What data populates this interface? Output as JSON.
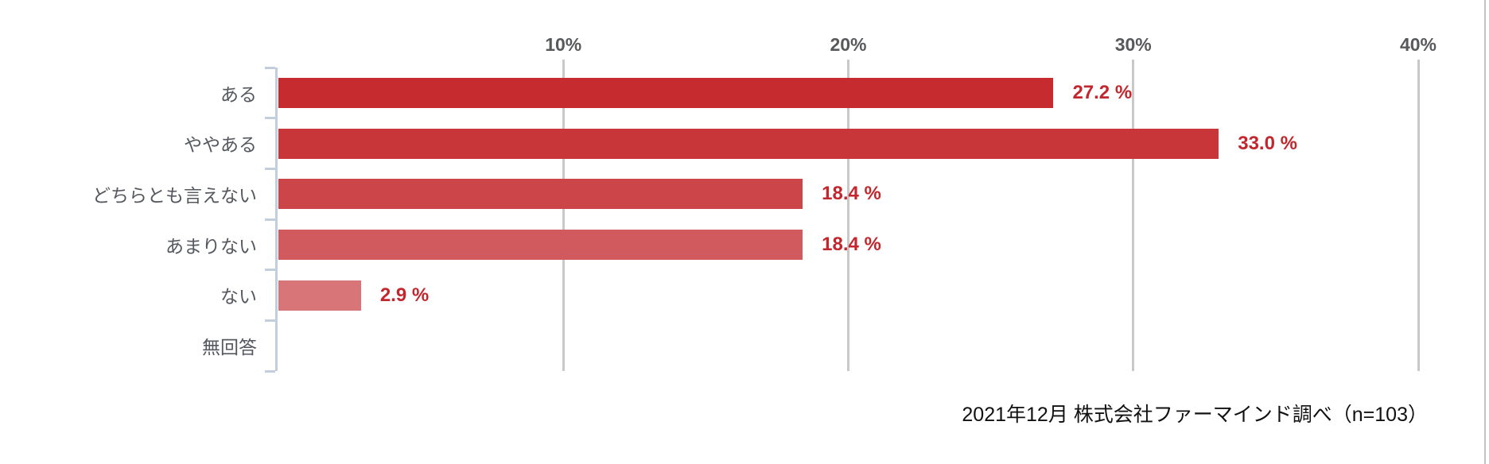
{
  "chart_data": {
    "type": "bar",
    "orientation": "horizontal",
    "title": "",
    "categories": [
      "ある",
      "ややある",
      "どちらとも言えない",
      "あまりない",
      "ない",
      "無回答"
    ],
    "values": [
      27.2,
      33.0,
      18.4,
      18.4,
      2.9,
      0
    ],
    "value_labels": [
      "27.2 %",
      "33.0 %",
      "18.4 %",
      "18.4 %",
      "2.9 %",
      ""
    ],
    "x_ticks": [
      {
        "value": 10,
        "label": "10%"
      },
      {
        "value": 20,
        "label": "20%"
      },
      {
        "value": 30,
        "label": "30%"
      },
      {
        "value": 40,
        "label": "40%"
      }
    ],
    "xlim": [
      0,
      40
    ],
    "grid": true,
    "legend": false,
    "bar_colors": [
      "#c52b2f",
      "#c93639",
      "#cc4548",
      "#d15a5e",
      "#d87578"
    ],
    "value_label_color": "#c1272d",
    "axis_line_color": "#c2cedb",
    "grid_line_color": "#c9c9c9",
    "tick_label_color": "#58595b",
    "category_label_color": "#55585e",
    "source_note": "2021年12月 株式会社ファーマインド調べ（n=103）"
  }
}
